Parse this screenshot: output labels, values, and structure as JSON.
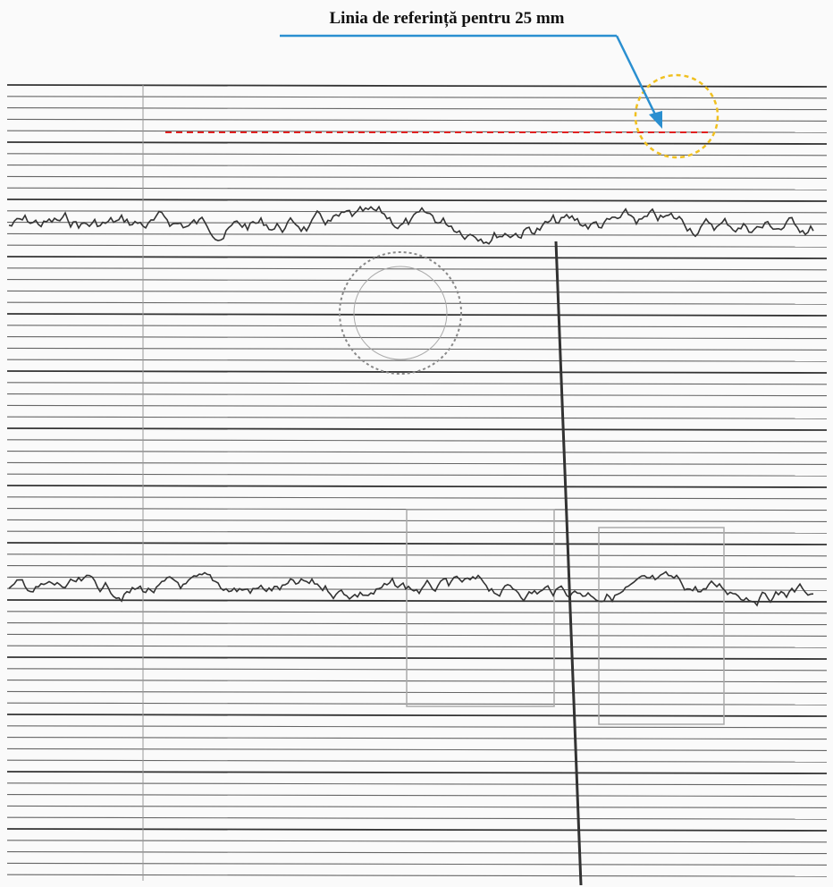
{
  "annotation": {
    "text": "Linia de referință pentru 25 mm"
  }
}
